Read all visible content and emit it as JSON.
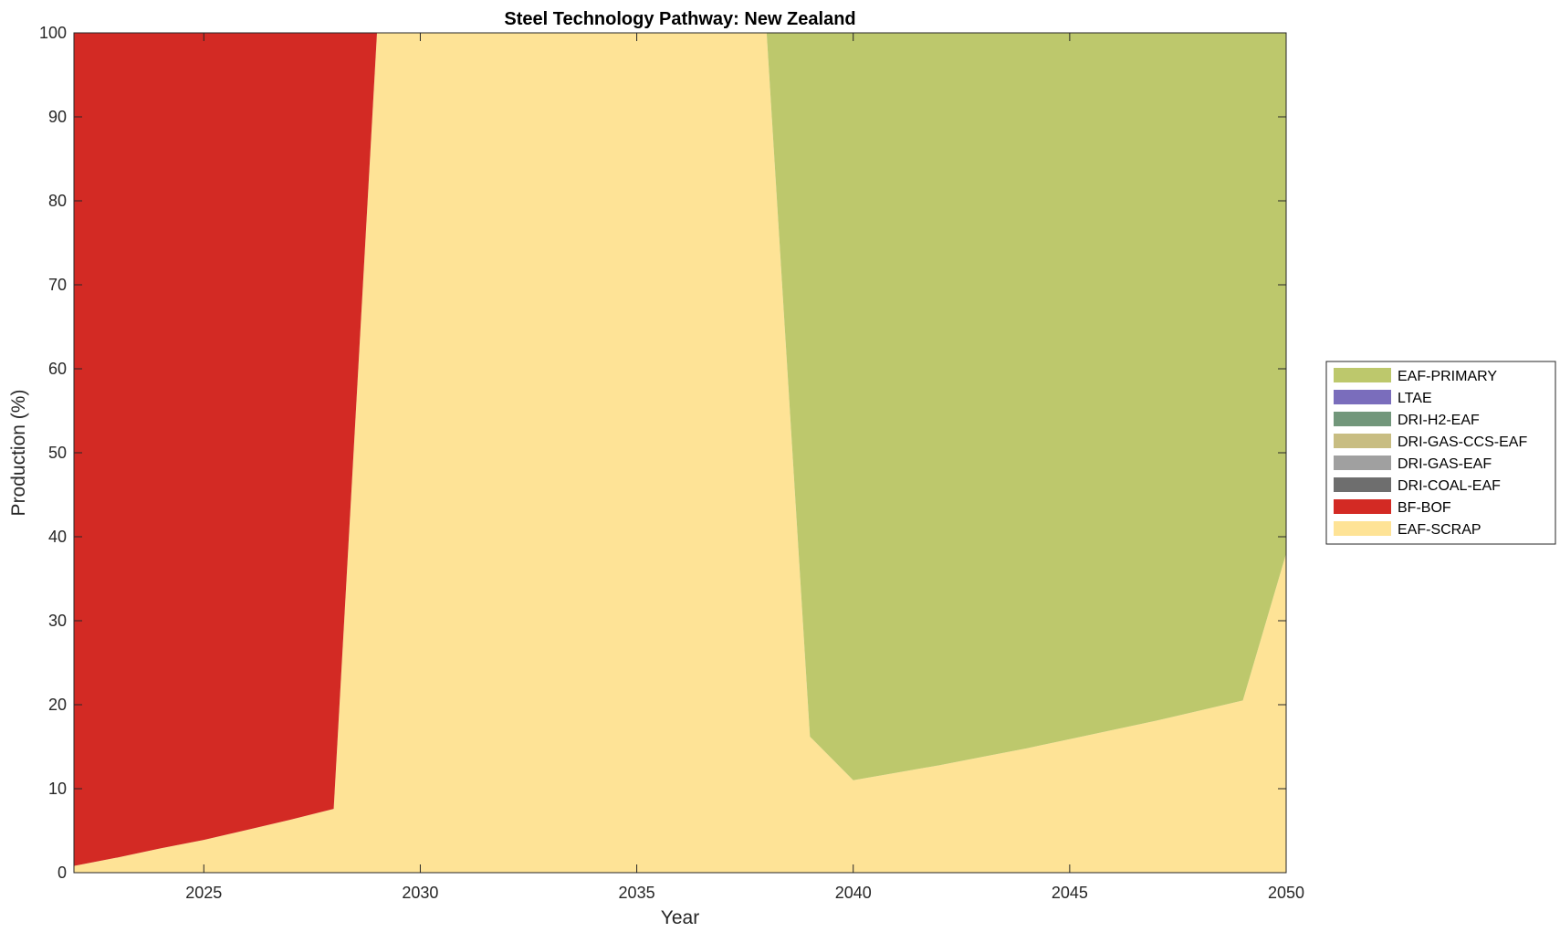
{
  "chart_data": {
    "type": "area",
    "title": "Steel Technology Pathway: New Zealand",
    "xlabel": "Year",
    "ylabel": "Production (%)",
    "xlim": [
      2022,
      2050
    ],
    "ylim": [
      0,
      100
    ],
    "x_ticks": [
      "2025",
      "2030",
      "2035",
      "2040",
      "2045",
      "2050"
    ],
    "y_ticks": [
      "0",
      "10",
      "20",
      "30",
      "40",
      "50",
      "60",
      "70",
      "80",
      "90",
      "100"
    ],
    "stacked": true,
    "grid": false,
    "legend_position": "right",
    "x": [
      2022,
      2023,
      2024,
      2025,
      2026,
      2027,
      2028,
      2029,
      2030,
      2031,
      2032,
      2033,
      2034,
      2035,
      2036,
      2037,
      2038,
      2039,
      2040,
      2041,
      2042,
      2043,
      2044,
      2045,
      2046,
      2047,
      2048,
      2049,
      2050
    ],
    "series": [
      {
        "name": "EAF-SCRAP",
        "color": "#FEE396",
        "values": [
          0.8,
          1.8,
          2.9,
          3.9,
          5.1,
          6.3,
          7.6,
          100,
          100,
          100,
          100,
          100,
          100,
          100,
          100,
          100,
          100,
          16.2,
          11.0,
          11.9,
          12.8,
          13.8,
          14.8,
          15.9,
          17.0,
          18.1,
          19.3,
          20.5,
          38.0
        ]
      },
      {
        "name": "BF-BOF",
        "color": "#D32A24",
        "values": [
          99.2,
          98.2,
          97.1,
          96.1,
          94.9,
          93.7,
          92.4,
          0,
          0,
          0,
          0,
          0,
          0,
          0,
          0,
          0,
          0,
          0,
          0,
          0,
          0,
          0,
          0,
          0,
          0,
          0,
          0,
          0,
          0
        ]
      },
      {
        "name": "DRI-COAL-EAF",
        "color": "#6E6E6E",
        "values": [
          0,
          0,
          0,
          0,
          0,
          0,
          0,
          0,
          0,
          0,
          0,
          0,
          0,
          0,
          0,
          0,
          0,
          0,
          0,
          0,
          0,
          0,
          0,
          0,
          0,
          0,
          0,
          0,
          0
        ]
      },
      {
        "name": "DRI-GAS-EAF",
        "color": "#A0A0A0",
        "values": [
          0,
          0,
          0,
          0,
          0,
          0,
          0,
          0,
          0,
          0,
          0,
          0,
          0,
          0,
          0,
          0,
          0,
          0,
          0,
          0,
          0,
          0,
          0,
          0,
          0,
          0,
          0,
          0,
          0
        ]
      },
      {
        "name": "DRI-GAS-CCS-EAF",
        "color": "#C8BD82",
        "values": [
          0,
          0,
          0,
          0,
          0,
          0,
          0,
          0,
          0,
          0,
          0,
          0,
          0,
          0,
          0,
          0,
          0,
          0,
          0,
          0,
          0,
          0,
          0,
          0,
          0,
          0,
          0,
          0,
          0
        ]
      },
      {
        "name": "DRI-H2-EAF",
        "color": "#72977B",
        "values": [
          0,
          0,
          0,
          0,
          0,
          0,
          0,
          0,
          0,
          0,
          0,
          0,
          0,
          0,
          0,
          0,
          0,
          0,
          0,
          0,
          0,
          0,
          0,
          0,
          0,
          0,
          0,
          0,
          0
        ]
      },
      {
        "name": "LTAE",
        "color": "#7A6DBC",
        "values": [
          0,
          0,
          0,
          0,
          0,
          0,
          0,
          0,
          0,
          0,
          0,
          0,
          0,
          0,
          0,
          0,
          0,
          0,
          0,
          0,
          0,
          0,
          0,
          0,
          0,
          0,
          0,
          0,
          0
        ]
      },
      {
        "name": "EAF-PRIMARY",
        "color": "#BDC86C",
        "values": [
          0,
          0,
          0,
          0,
          0,
          0,
          0,
          0,
          0,
          0,
          0,
          0,
          0,
          0,
          0,
          0,
          0,
          83.8,
          89.0,
          88.1,
          87.2,
          86.2,
          85.2,
          84.1,
          83.0,
          81.9,
          80.7,
          79.5,
          62.0
        ]
      }
    ],
    "legend_order": [
      "EAF-PRIMARY",
      "LTAE",
      "DRI-H2-EAF",
      "DRI-GAS-CCS-EAF",
      "DRI-GAS-EAF",
      "DRI-COAL-EAF",
      "BF-BOF",
      "EAF-SCRAP"
    ]
  }
}
